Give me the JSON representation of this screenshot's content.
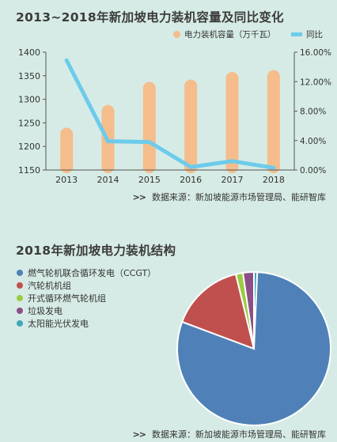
{
  "titles": {
    "chart1": "2013~2018年新加坡电力装机容量及同比变化",
    "chart2": "2018年新加坡电力装机结构"
  },
  "sources": {
    "arrows": ">>",
    "chart1": "数据来源：新加坡能源市场管理局、能研智库",
    "chart2": "数据来源：新加坡能源市场管理局、能研智库"
  },
  "colors": {
    "background": "#d6ebe5",
    "bar": "#f5bd8c",
    "line": "#6dcbeb",
    "axis": "#555555"
  },
  "chart_data": [
    {
      "type": "bar",
      "title": "2013~2018年新加坡电力装机容量及同比变化",
      "categories": [
        "2013",
        "2014",
        "2015",
        "2016",
        "2017",
        "2018"
      ],
      "series": [
        {
          "name": "电力装机容量（万千瓦）",
          "type": "bar",
          "axis": "left",
          "values": [
            1240,
            1288,
            1337,
            1342,
            1358,
            1362
          ]
        },
        {
          "name": "同比",
          "type": "line",
          "axis": "right",
          "values": [
            14.9,
            3.9,
            3.8,
            0.4,
            1.2,
            0.3
          ]
        }
      ],
      "ylim_left": [
        1150,
        1400
      ],
      "yticks_left": [
        "1150",
        "1200",
        "1250",
        "1300",
        "1350",
        "1400"
      ],
      "ylim_right": [
        0,
        16
      ],
      "yticks_right": [
        "0.00%",
        "4.00%",
        "8.00%",
        "12.00%",
        "16.00%"
      ],
      "legend_position": "top-right",
      "grid": false
    },
    {
      "type": "pie",
      "title": "2018年新加坡电力装机结构",
      "labels": [
        "燃气轮机联合循环发电（CCGT）",
        "汽轮机机组",
        "开式循环燃气轮机组",
        "垃圾发电",
        "太阳能光伏发电"
      ],
      "values": [
        80.0,
        15.5,
        1.5,
        2.3,
        0.7
      ],
      "unit": "%",
      "colors": [
        "#4f81b8",
        "#c0504d",
        "#9acd43",
        "#8c4f86",
        "#3fa8b8"
      ],
      "legend_position": "left"
    }
  ]
}
